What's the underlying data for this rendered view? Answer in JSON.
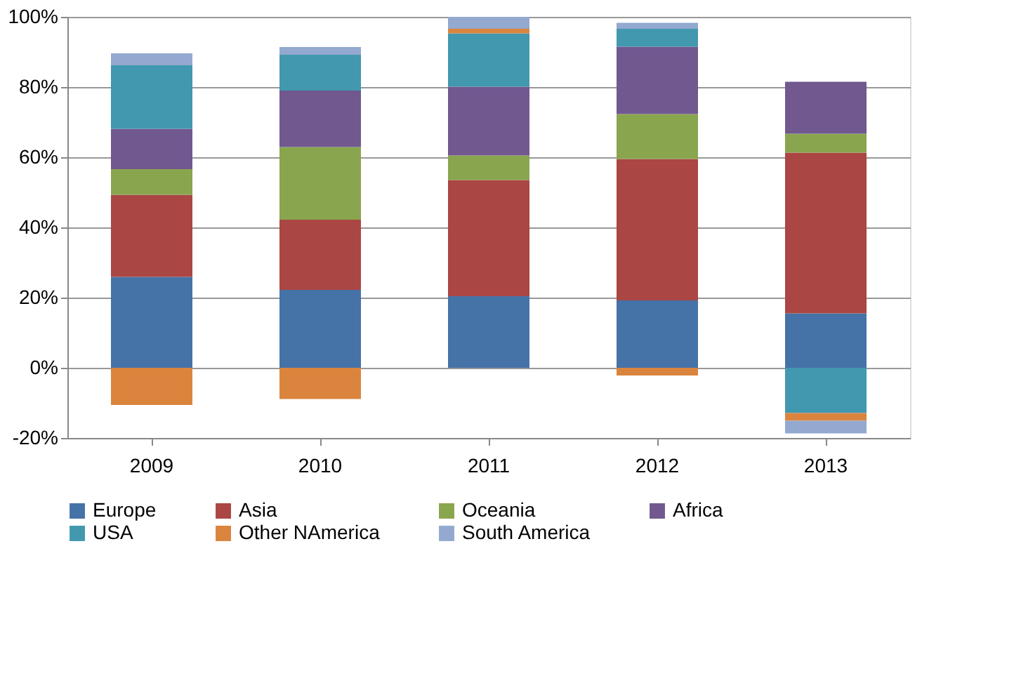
{
  "chart_data": {
    "type": "bar",
    "stacked": true,
    "categories": [
      "2009",
      "2010",
      "2011",
      "2012",
      "2013"
    ],
    "series": [
      {
        "name": "Europe",
        "color": "#4572a7",
        "values": [
          25.9,
          22.2,
          20.4,
          19.2,
          15.5
        ]
      },
      {
        "name": "Asia",
        "color": "#aa4643",
        "values": [
          23.4,
          20,
          33.1,
          40.3,
          45.8
        ]
      },
      {
        "name": "Oceania",
        "color": "#89a54e",
        "values": [
          7.3,
          20.7,
          7,
          12.8,
          5.4
        ]
      },
      {
        "name": "Africa",
        "color": "#71588f",
        "values": [
          11.5,
          16.1,
          19.6,
          19.2,
          14.8
        ]
      },
      {
        "name": "USA",
        "color": "#4198af",
        "values": [
          18.1,
          10.2,
          15.2,
          5.1,
          -12.9
        ]
      },
      {
        "name": "Other NAmerica",
        "color": "#db843d",
        "values": [
          -10.6,
          -8.9,
          1.3,
          -2.2,
          -2.2
        ]
      },
      {
        "name": "South America",
        "color": "#93a9cf",
        "values": [
          3.4,
          2.2,
          3.4,
          1.7,
          -3.6
        ]
      }
    ],
    "ylim": [
      -20,
      100
    ],
    "yticks": [
      {
        "value": -20,
        "label": "-20%"
      },
      {
        "value": 0,
        "label": "0%"
      },
      {
        "value": 20,
        "label": "20%"
      },
      {
        "value": 40,
        "label": "40%"
      },
      {
        "value": 60,
        "label": "60%"
      },
      {
        "value": 80,
        "label": "80%"
      },
      {
        "value": 100,
        "label": "100%"
      }
    ],
    "grid": "y",
    "legend": "bottom"
  }
}
